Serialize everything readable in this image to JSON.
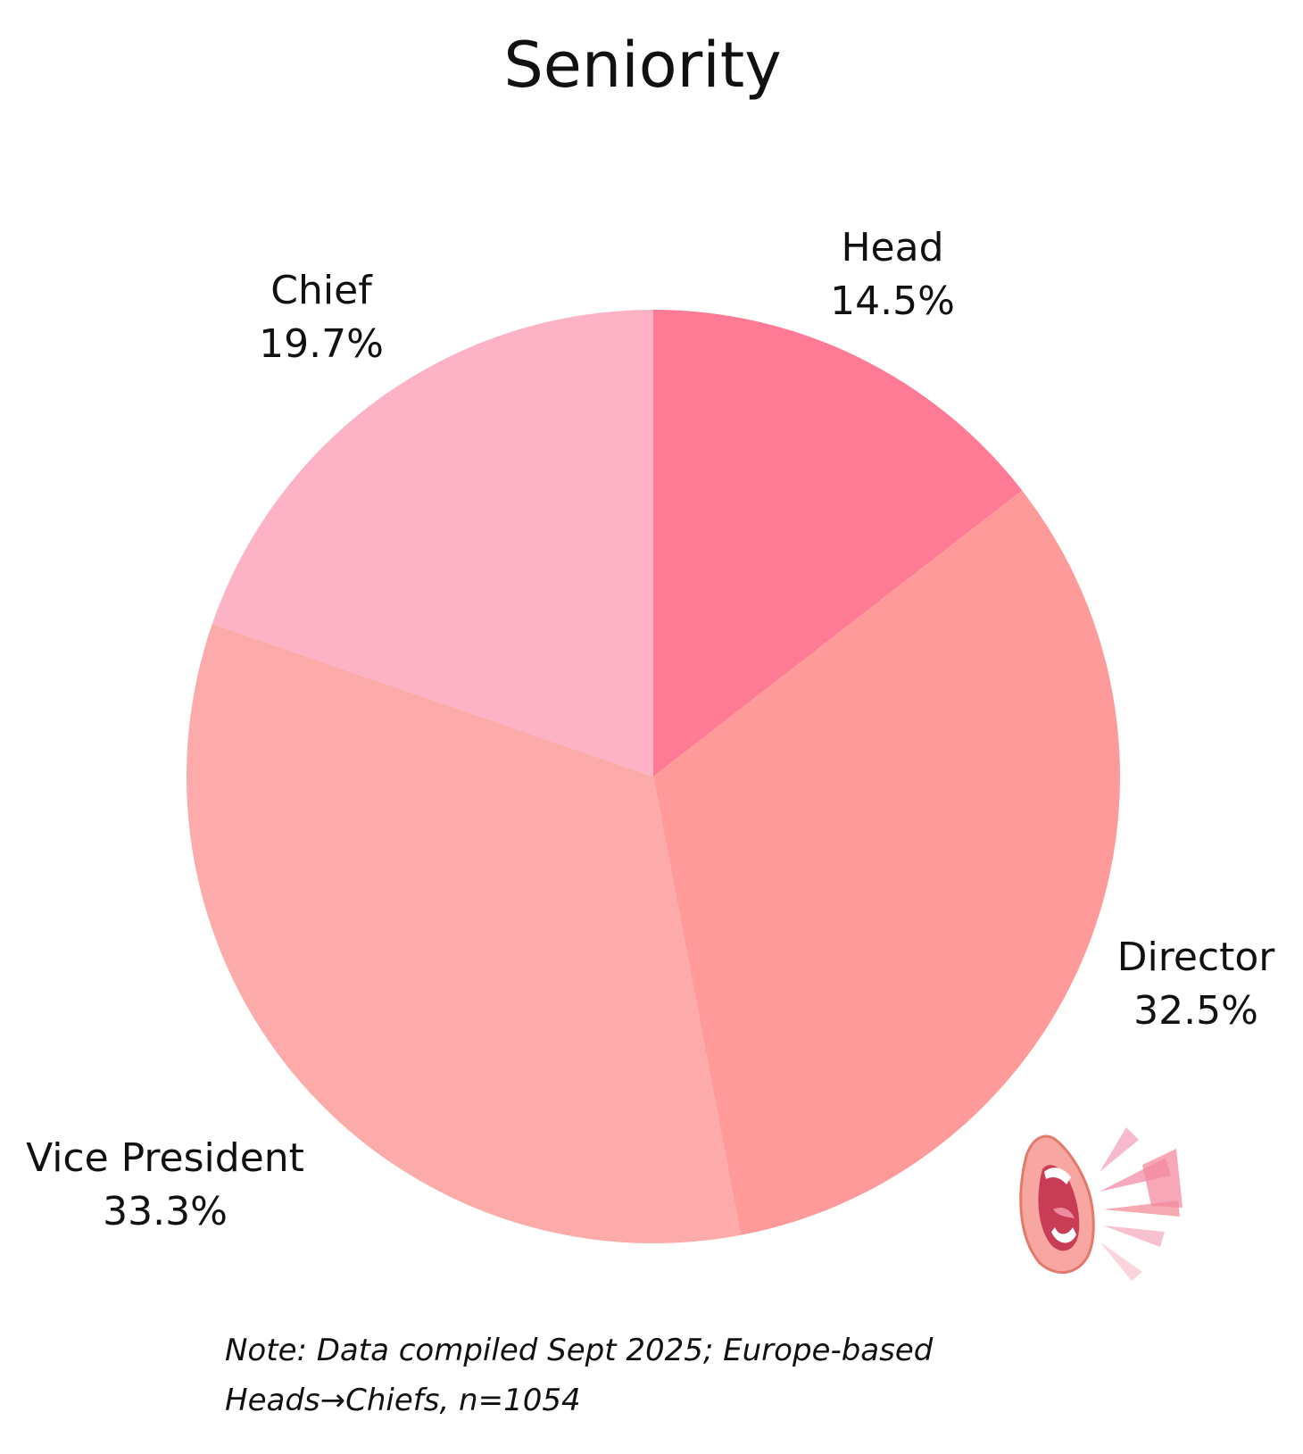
{
  "chart_data": {
    "type": "pie",
    "title": "Seniority",
    "categories": [
      "Head",
      "Director",
      "Vice President",
      "Chief"
    ],
    "values": [
      14.5,
      32.5,
      33.3,
      19.7
    ],
    "value_labels": [
      "14.5%",
      "32.5%",
      "33.3%",
      "19.7%"
    ],
    "colors": [
      "#FF7B95",
      "#FF9A9A",
      "#FDAAAA",
      "#FDB2C5"
    ],
    "start_angle_deg": 0,
    "direction": "clockwise",
    "legend": "none"
  },
  "note": {
    "line1": "Note: Data compiled Sept 2025; Europe-based",
    "line2": "Heads→Chiefs, n=1054"
  },
  "decoration": {
    "icon": "shouting-mouth-icon"
  }
}
